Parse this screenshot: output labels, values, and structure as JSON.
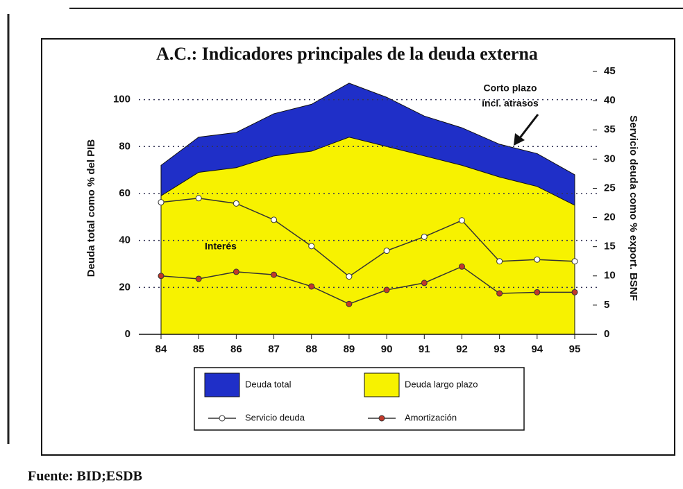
{
  "chart_data": {
    "type": "area_line",
    "title": "A.C.: Indicadores principales de la deuda externa",
    "y_label": "Deuda total como % del PIB",
    "y2_label": "Servicio deuda como % export. BSNF",
    "categories": [
      "84",
      "85",
      "86",
      "87",
      "88",
      "89",
      "90",
      "91",
      "92",
      "93",
      "94",
      "95"
    ],
    "series": [
      {
        "name": "Deuda total",
        "kind": "area",
        "color": "#1f2fc8",
        "values": [
          72,
          84,
          86,
          94,
          98,
          107,
          101,
          93,
          88,
          81,
          77,
          68
        ]
      },
      {
        "name": "Deuda largo plazo",
        "kind": "area",
        "color": "#f7f200",
        "values": [
          59,
          69,
          71,
          76,
          78,
          84,
          80,
          76,
          72,
          67,
          63,
          55
        ]
      },
      {
        "name": "Servicio deuda",
        "kind": "line",
        "axis": "y2",
        "color": "#ffffff",
        "values": [
          22.6,
          23.3,
          22.4,
          19.6,
          15.1,
          9.9,
          14.3,
          16.7,
          19.5,
          12.5,
          12.8,
          12.5
        ]
      },
      {
        "name": "Amortización",
        "kind": "line",
        "axis": "y2",
        "color": "#c0392b",
        "values": [
          10,
          9.5,
          10.7,
          10.2,
          8.2,
          5.2,
          7.6,
          8.8,
          11.6,
          7,
          7.2,
          7.2
        ]
      }
    ],
    "ylim": [
      0,
      112
    ],
    "yticks": [
      0,
      20,
      40,
      60,
      80,
      100
    ],
    "y2lim": [
      0,
      45
    ],
    "y2ticks": [
      0,
      5,
      10,
      15,
      20,
      25,
      30,
      35,
      40,
      45
    ],
    "grid": true,
    "annotations": [
      "Corto plazo",
      "incl. atrasos",
      "Interés"
    ],
    "source": "Fuente: BID;ESDB"
  }
}
